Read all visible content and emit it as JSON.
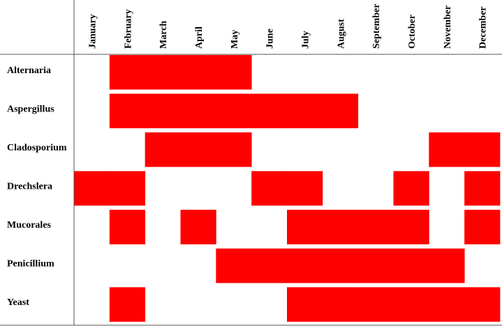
{
  "chart_data": {
    "type": "timeline",
    "color": "#ff0000",
    "categories": [
      "January",
      "February",
      "March",
      "April",
      "May",
      "June",
      "July",
      "August",
      "September",
      "October",
      "November",
      "December"
    ],
    "series": [
      {
        "name": "Alternaria",
        "values": [
          0,
          1,
          1,
          1,
          1,
          0,
          0,
          0,
          0,
          0,
          0,
          0
        ]
      },
      {
        "name": "Aspergillus",
        "values": [
          0,
          1,
          1,
          1,
          1,
          1,
          1,
          1,
          0,
          0,
          0,
          0
        ]
      },
      {
        "name": "Cladosporium",
        "values": [
          0,
          0,
          1,
          1,
          1,
          0,
          0,
          0,
          0,
          0,
          1,
          1
        ]
      },
      {
        "name": "Drechslera",
        "values": [
          1,
          1,
          0,
          0,
          0,
          1,
          1,
          0,
          0,
          1,
          0,
          1
        ]
      },
      {
        "name": "Mucorales",
        "values": [
          0,
          1,
          0,
          1,
          0,
          0,
          1,
          1,
          1,
          1,
          0,
          1
        ]
      },
      {
        "name": "Penicillium",
        "values": [
          0,
          0,
          0,
          0,
          1,
          1,
          1,
          1,
          1,
          1,
          1,
          0
        ]
      },
      {
        "name": "Yeast",
        "values": [
          0,
          1,
          0,
          0,
          0,
          0,
          1,
          1,
          1,
          1,
          1,
          1
        ]
      }
    ]
  }
}
